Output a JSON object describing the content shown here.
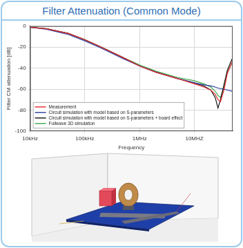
{
  "chart_data": {
    "type": "line",
    "title": "Filter Attenuation (Common Mode)",
    "x_label": "Frequency",
    "y_label": "Filter CM attenuation [dB]",
    "x": [
      10000,
      20000,
      50000,
      100000,
      200000,
      500000,
      1000000,
      2000000,
      5000000,
      10000000,
      15000000,
      20000000,
      24000000,
      27000000,
      30000000,
      35000000,
      40000000,
      50000000
    ],
    "series": [
      {
        "name": "Measurement",
        "color": "#e8262a",
        "values": [
          -1,
          -2.5,
          -7,
          -13,
          -20,
          -30,
          -38,
          -44,
          -50,
          -55,
          -58,
          -61,
          -65,
          -70,
          -72,
          -60,
          -45,
          -33
        ]
      },
      {
        "name": "Circuit simulation with model based on S-parameters",
        "color": "#2a3a9c",
        "values": [
          -1,
          -3,
          -8,
          -14,
          -21,
          -31,
          -38,
          -44,
          -50,
          -54,
          -56,
          -57,
          -58,
          -59,
          -59.5,
          -60,
          -61,
          -62
        ]
      },
      {
        "name": "Circuit simulation with model based on S-parameters + board effect",
        "color": "#111111",
        "values": [
          -1,
          -2.5,
          -7,
          -13,
          -20,
          -30,
          -38,
          -44,
          -50,
          -54,
          -57,
          -61,
          -68,
          -78,
          -70,
          -55,
          -42,
          -30
        ]
      },
      {
        "name": "Fullwave 3D simulation",
        "color": "#3aa84a",
        "values": [
          -1,
          -2.5,
          -7,
          -13,
          -20,
          -30,
          -37,
          -43,
          -49,
          -52,
          -55,
          -58,
          -62,
          -66,
          -68,
          -58,
          -44,
          -34
        ]
      }
    ],
    "log": "x",
    "xlim": [
      10000,
      50000000
    ],
    "xticks": [
      {
        "value": 10000,
        "label": "10kHz"
      },
      {
        "value": 100000,
        "label": "100kHz"
      },
      {
        "value": 1000000,
        "label": "1MHz"
      },
      {
        "value": 10000000,
        "label": "10MHZ"
      }
    ],
    "ylim": [
      -100,
      0
    ],
    "yticks": [
      -100,
      -80,
      -60,
      -40,
      -20,
      0
    ],
    "grid": true,
    "legend": "lower left"
  }
}
